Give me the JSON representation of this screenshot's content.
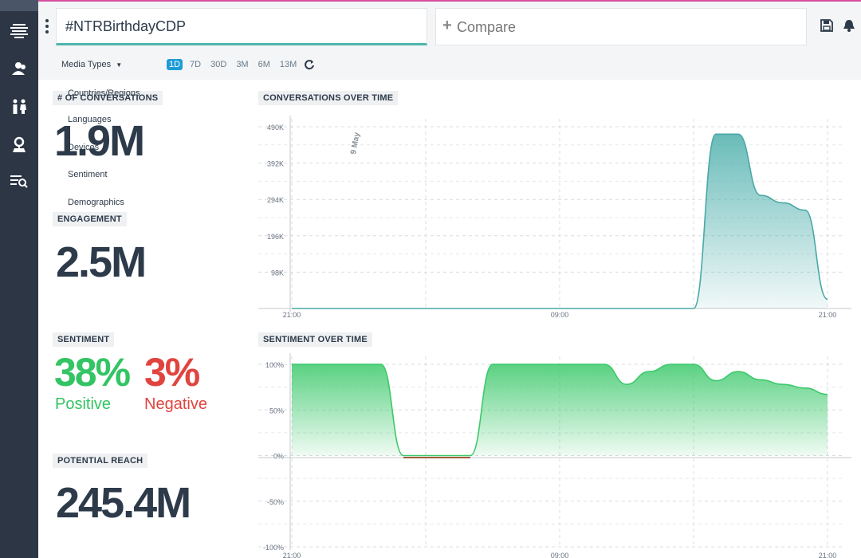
{
  "header": {
    "search_query": "#NTRBirthdayCDP",
    "compare_label": "Compare"
  },
  "sidebar": {
    "items": [
      {
        "icon": "stream-icon"
      },
      {
        "icon": "users-icon"
      },
      {
        "icon": "demographics-icon"
      },
      {
        "icon": "location-icon"
      },
      {
        "icon": "list-search-icon"
      }
    ]
  },
  "filters": {
    "media_types": "Media Types",
    "ranges": [
      "1D",
      "7D",
      "30D",
      "3M",
      "6M",
      "13M"
    ],
    "active_range": "1D",
    "menu_items": [
      "Countries/Regions",
      "Languages",
      "Devices",
      "Sentiment",
      "Demographics"
    ]
  },
  "metrics": {
    "conversations_label": "# OF CONVERSATIONS",
    "conversations_value": "1.9M",
    "engagement_label": "ENGAGEMENT",
    "engagement_value": "2.5M",
    "sentiment_label": "SENTIMENT",
    "positive_pct": "38%",
    "positive_label": "Positive",
    "negative_pct": "3%",
    "negative_label": "Negative",
    "reach_label": "POTENTIAL REACH",
    "reach_value": "245.4M"
  },
  "colors": {
    "positive": "#33c463",
    "negative": "#e0443e",
    "accent": "#4fb5ad",
    "active_range": "#1e9bd7"
  },
  "chart_data": [
    {
      "type": "area",
      "title": "CONVERSATIONS OVER TIME",
      "annotation": "9 May",
      "x_ticks": [
        "21:00",
        "09:00",
        "21:00"
      ],
      "y_ticks": [
        "98K",
        "196K",
        "294K",
        "392K",
        "490K"
      ],
      "ylim": [
        0,
        490000
      ],
      "x": [
        0,
        1,
        2,
        3,
        4,
        5,
        6,
        7,
        8,
        9,
        10,
        11,
        12,
        13,
        14,
        15,
        16,
        17,
        18,
        19,
        20,
        21,
        22,
        23,
        24
      ],
      "values": [
        0,
        0,
        0,
        0,
        0,
        0,
        0,
        0,
        0,
        0,
        0,
        0,
        0,
        0,
        0,
        0,
        0,
        0,
        0,
        470000,
        470000,
        305000,
        285000,
        265000,
        25000
      ]
    },
    {
      "type": "area",
      "title": "SENTIMENT OVER TIME",
      "x_ticks": [
        "21:00",
        "09:00",
        "21:00"
      ],
      "y_ticks": [
        "100%",
        "50%",
        "0%",
        "-50%",
        "-100%"
      ],
      "ylim": [
        -100,
        100
      ],
      "x": [
        0,
        1,
        2,
        3,
        4,
        5,
        6,
        7,
        8,
        9,
        10,
        11,
        12,
        13,
        14,
        15,
        16,
        17,
        18,
        19,
        20,
        21,
        22,
        23,
        24
      ],
      "values": [
        100,
        100,
        100,
        100,
        100,
        0,
        0,
        0,
        0,
        100,
        100,
        100,
        100,
        100,
        100,
        78,
        92,
        100,
        100,
        82,
        92,
        83,
        78,
        74,
        67
      ]
    }
  ]
}
